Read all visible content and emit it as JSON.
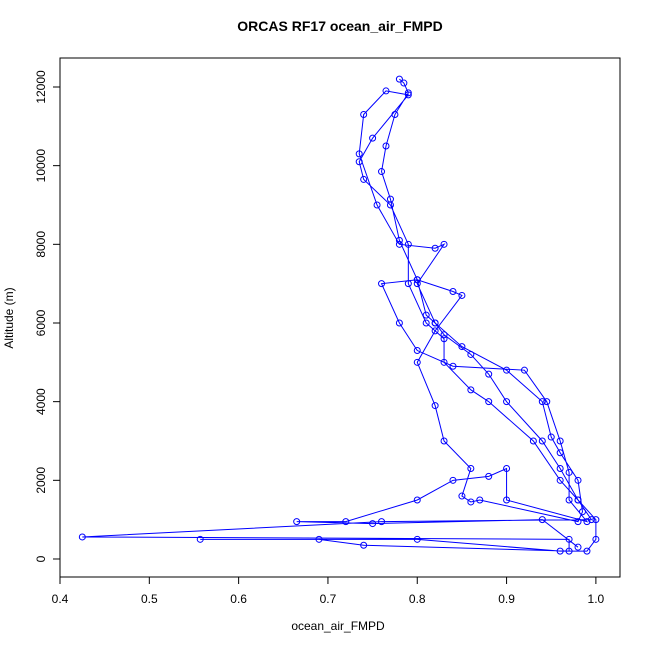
{
  "chart_data": {
    "type": "line",
    "title": "ORCAS RF17 ocean_air_FMPD",
    "x_label": "ocean_air_FMPD",
    "y_label": "Altitude (m)",
    "color": "#0000ff",
    "markers": true,
    "xlim": [
      0.4,
      1.027
    ],
    "ylim": [
      -458,
      12737
    ],
    "xticks": [
      0.4,
      0.5,
      0.6,
      0.7,
      0.8,
      0.9,
      {
        "value": 1,
        "label": "1.0"
      }
    ],
    "yticks": [
      0,
      2000,
      4000,
      6000,
      8000,
      10000,
      12000
    ],
    "series": [
      {
        "name": "ocean_air_FMPD",
        "color": "#0000ff",
        "x": [
          0.78,
          0.785,
          0.79,
          0.775,
          0.765,
          0.76,
          0.77,
          0.78,
          0.8,
          0.81,
          0.82,
          0.83,
          0.86,
          0.88,
          0.9,
          0.94,
          0.96,
          0.98,
          1.0,
          1.0,
          0.99,
          0.96,
          0.8,
          0.557,
          0.69,
          0.74,
          0.97,
          0.97,
          0.425,
          0.76,
          0.995,
          0.98,
          0.96,
          0.93,
          0.88,
          0.86,
          0.83,
          0.83,
          0.81,
          0.79,
          0.79,
          0.77,
          0.74,
          0.735,
          0.75,
          0.79,
          0.765,
          0.74,
          0.735,
          0.755,
          0.78,
          0.82,
          0.83,
          0.8,
          0.82,
          0.85,
          0.9,
          0.94,
          0.95,
          0.96,
          0.98,
          0.985,
          0.98,
          0.87,
          0.86,
          0.85,
          0.86,
          0.83,
          0.82,
          0.8,
          0.82,
          0.85,
          0.84,
          0.8,
          0.76,
          0.78,
          0.8,
          0.84,
          0.92,
          0.945,
          0.96,
          0.97,
          0.97,
          0.99,
          0.9,
          0.9,
          0.88,
          0.84,
          0.8,
          0.72,
          0.665,
          0.75,
          0.94,
          0.98
        ],
        "values": [
          12200,
          12100,
          11850,
          11300,
          10500,
          9850,
          9150,
          8100,
          7100,
          6200,
          6000,
          5700,
          5200,
          4700,
          4000,
          3000,
          2300,
          1500,
          1000,
          500,
          200,
          200,
          500,
          500,
          500,
          350,
          200,
          500,
          560,
          950,
          1000,
          1500,
          2000,
          3000,
          4000,
          4300,
          5000,
          5600,
          6000,
          7000,
          8000,
          9000,
          9650,
          10100,
          10700,
          11800,
          11900,
          11300,
          10300,
          9000,
          8000,
          7900,
          8000,
          7000,
          6000,
          5400,
          4800,
          4000,
          3100,
          2700,
          2000,
          1200,
          950,
          1500,
          1450,
          1600,
          2300,
          3000,
          3900,
          5000,
          5800,
          6700,
          6800,
          7100,
          7000,
          6000,
          5300,
          4900,
          4800,
          4000,
          3000,
          2200,
          1500,
          950,
          1500,
          2300,
          2100,
          2000,
          1500,
          950,
          950,
          900,
          1000,
          300
        ]
      }
    ]
  }
}
